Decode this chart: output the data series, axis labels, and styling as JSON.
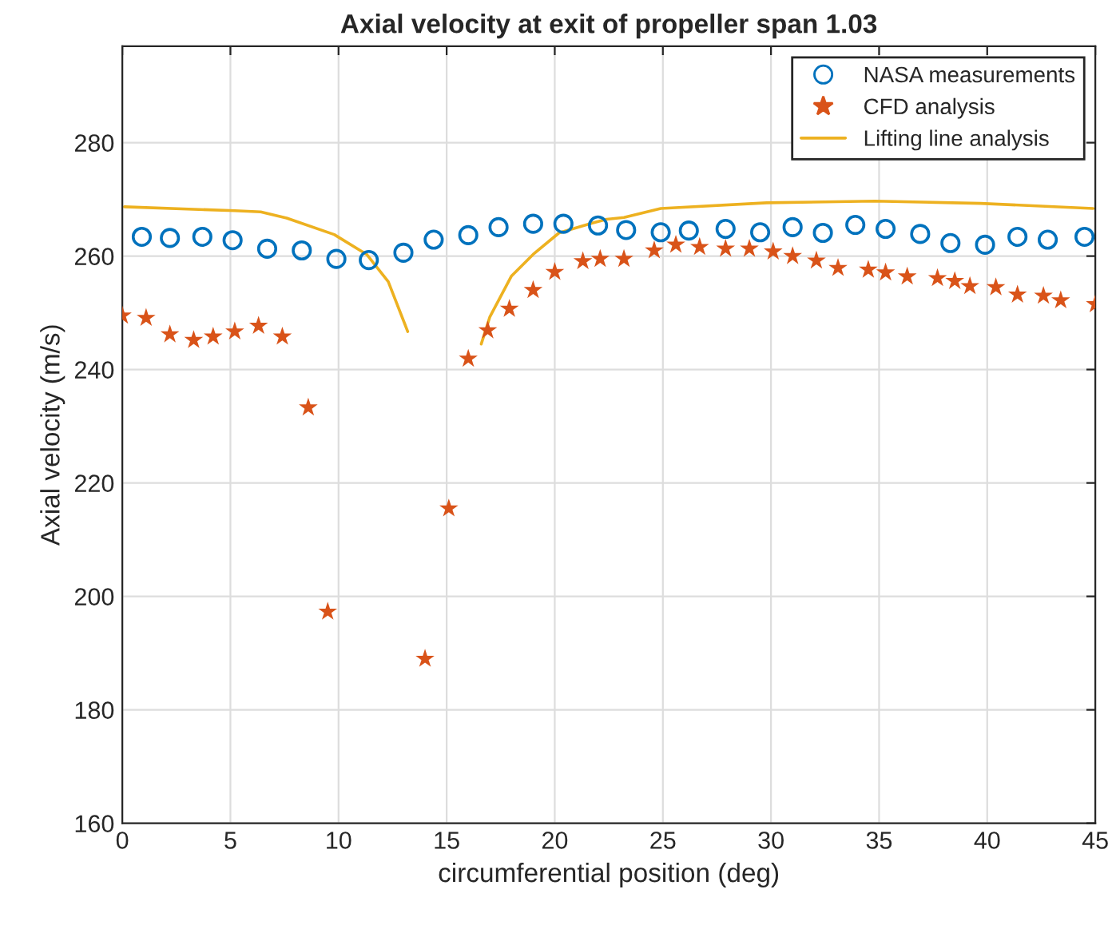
{
  "chart_data": {
    "type": "scatter",
    "title": "Axial velocity at exit of propeller span 1.03",
    "xlabel": "circumferential position (deg)",
    "ylabel": "Axial velocity (m/s)",
    "xlim": [
      0,
      45
    ],
    "xticks": [
      0,
      5,
      10,
      15,
      20,
      25,
      30,
      35,
      40,
      45
    ],
    "ylim": [
      160,
      297
    ],
    "yticks": [
      160,
      180,
      200,
      220,
      240,
      260,
      280
    ],
    "grid": true,
    "legend": "top right",
    "series": [
      {
        "name": "NASA measurements",
        "marker": "circle",
        "color": "#0072bd",
        "x": [
          0.9,
          2.2,
          3.7,
          5.1,
          6.7,
          8.3,
          9.9,
          11.4,
          13.0,
          14.4,
          16.0,
          17.4,
          19.0,
          20.4,
          22.0,
          23.3,
          24.9,
          26.2,
          27.9,
          29.5,
          31.0,
          32.4,
          33.9,
          35.3,
          36.9,
          38.3,
          39.9,
          41.4,
          42.8,
          44.5
        ],
        "values": [
          263.4,
          263.2,
          263.4,
          262.8,
          261.3,
          261.0,
          259.5,
          259.3,
          260.6,
          262.9,
          263.7,
          265.1,
          265.7,
          265.7,
          265.4,
          264.6,
          264.2,
          264.5,
          264.8,
          264.2,
          265.1,
          264.1,
          265.5,
          264.8,
          263.9,
          262.3,
          262.0,
          263.4,
          262.9,
          263.4
        ]
      },
      {
        "name": "CFD analysis",
        "marker": "star",
        "color": "#d95319",
        "x": [
          0.0,
          1.1,
          2.2,
          3.3,
          4.2,
          5.2,
          6.3,
          7.4,
          8.6,
          9.5,
          14.0,
          15.1,
          16.0,
          16.9,
          17.9,
          19.0,
          20.0,
          21.3,
          22.1,
          23.2,
          24.6,
          25.6,
          26.7,
          27.9,
          29.0,
          30.1,
          31.0,
          32.1,
          33.1,
          34.5,
          35.3,
          36.3,
          37.7,
          38.5,
          39.2,
          40.4,
          41.4,
          42.6,
          43.4,
          45.0
        ],
        "values": [
          249.5,
          249.1,
          246.2,
          245.2,
          245.8,
          246.7,
          247.7,
          245.8,
          233.3,
          197.3,
          189.0,
          215.5,
          241.9,
          246.9,
          250.7,
          254.0,
          257.2,
          259.1,
          259.5,
          259.5,
          261.0,
          262.0,
          261.6,
          261.3,
          261.3,
          260.8,
          260.0,
          259.2,
          257.9,
          257.6,
          257.1,
          256.4,
          256.1,
          255.6,
          254.7,
          254.5,
          253.2,
          253.0,
          252.2,
          251.5
        ]
      },
      {
        "name": "Lifting line analysis",
        "type": "line",
        "marker": "none",
        "line_style": "solid",
        "color": "#edb120",
        "x": [
          0.1,
          5.2,
          6.4,
          7.6,
          9.8,
          11.3,
          12.3,
          13.2,
          14.9,
          16.6,
          17.0,
          18.0,
          19.0,
          20.2,
          21.7,
          22.4,
          23.2,
          24.9,
          29.8,
          34.8,
          39.7,
          44.9
        ],
        "values": [
          268.7,
          268.0,
          267.8,
          266.7,
          263.8,
          260.3,
          255.5,
          246.7,
          null,
          244.5,
          249.3,
          256.5,
          260.3,
          264.1,
          265.8,
          266.5,
          266.8,
          268.4,
          269.4,
          269.7,
          269.3,
          268.4
        ]
      }
    ]
  }
}
